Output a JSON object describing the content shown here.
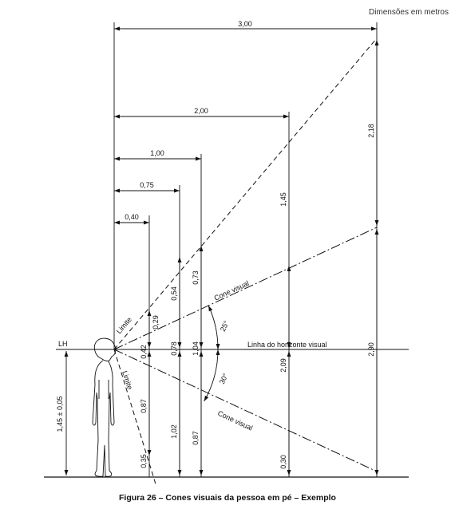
{
  "units_note": "Dimensões em metros",
  "caption": "Figura 26 – Cones visuais da pessoa em pé – Exemplo",
  "labels": {
    "lh": "LH",
    "horizon_line": "Linha do horizonte visual",
    "cone_upper": "Cone visual",
    "cone_lower": "Cone visual",
    "limit_upper": "Limite",
    "limit_lower": "Limite",
    "angle_upper": "25°",
    "angle_lower": "30°",
    "eye_height": "1,45 ± 0,05"
  },
  "horizontal_dimensions": [
    "3,00",
    "2,00",
    "1,00",
    "0,75",
    "0,40"
  ],
  "vertical_dimensions": {
    "d040": [
      "0,29",
      "0,42",
      "0,87",
      "0,35"
    ],
    "d075": [
      "0,54",
      "0,78",
      "1,02"
    ],
    "d100": [
      "0,73",
      "1,04",
      "0,87"
    ],
    "d200": [
      "1,45",
      "2,09",
      "0,30"
    ],
    "d300": [
      "2,18",
      "2,90"
    ]
  }
}
